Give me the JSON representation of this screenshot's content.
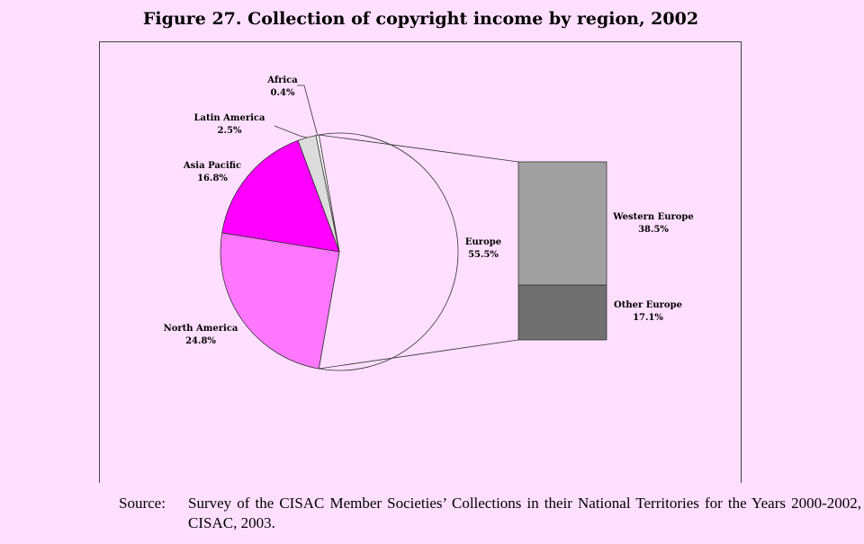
{
  "title": "Figure 27. Collection of copyright income by region, 2002",
  "chart_data": {
    "type": "pie",
    "title": "Figure 27. Collection of copyright income by region, 2002",
    "slices": [
      {
        "name": "Europe",
        "value": 55.5,
        "label": "55.5%",
        "color": "#ffdfff"
      },
      {
        "name": "North America",
        "value": 24.8,
        "label": "24.8%",
        "color": "#ff77ff"
      },
      {
        "name": "Asia Pacific",
        "value": 16.8,
        "label": "16.8%",
        "color": "#ff00ff"
      },
      {
        "name": "Latin America",
        "value": 2.5,
        "label": "2.5%",
        "color": "#dcdcdc"
      },
      {
        "name": "Africa",
        "value": 0.4,
        "label": "0.4%",
        "color": "#ffffff"
      }
    ],
    "breakdown": {
      "of": "Europe",
      "type": "stacked-bar",
      "segments": [
        {
          "name": "Western Europe",
          "value": 38.5,
          "label": "38.5%",
          "color": "#a0a0a0"
        },
        {
          "name": "Other Europe",
          "value": 17.1,
          "label": "17.1%",
          "color": "#707070"
        }
      ]
    }
  },
  "source": {
    "label": "Source:",
    "text": "Survey of the CISAC Member Societies’ Collections in their National Territories for the Years 2000-2002, CISAC, 2003."
  }
}
